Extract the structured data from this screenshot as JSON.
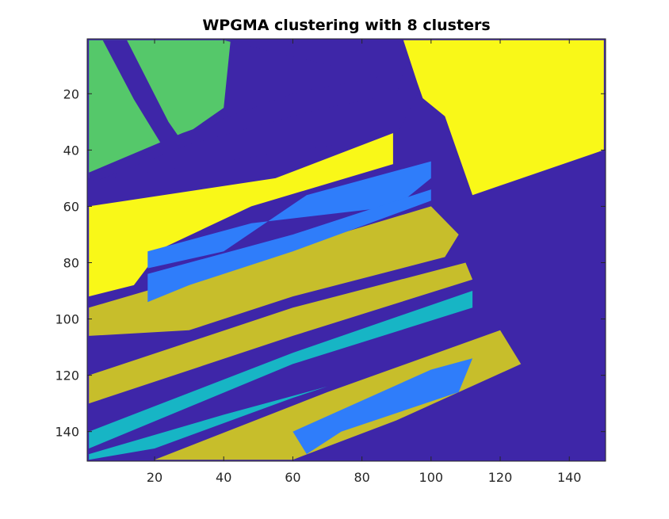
{
  "chart_data": {
    "type": "heatmap",
    "title": "WPGMA clustering with 8 clusters",
    "xlabel": "",
    "ylabel": "",
    "xlim": [
      0.5,
      150.5
    ],
    "ylim": [
      0.5,
      150.5
    ],
    "y_reversed": true,
    "grid": false,
    "x_ticks": [
      20,
      40,
      60,
      80,
      100,
      120,
      140
    ],
    "y_ticks": [
      20,
      40,
      60,
      80,
      100,
      120,
      140
    ],
    "x_tick_labels": [
      "20",
      "40",
      "60",
      "80",
      "100",
      "120",
      "140"
    ],
    "y_tick_labels": [
      "20",
      "40",
      "60",
      "80",
      "100",
      "120",
      "140"
    ],
    "grid_size": [
      150,
      150
    ],
    "cluster_colors": {
      "road": "#3e26a8",
      "blue": "#2f7dfa",
      "teal": "#17b5c5",
      "green": "#55c86a",
      "olive": "#c7be2b",
      "yellow": "#f9f818"
    },
    "regions": [
      {
        "cluster": "green",
        "polygon": [
          [
            1,
            1
          ],
          [
            42,
            1
          ],
          [
            40,
            25
          ],
          [
            26,
            37
          ],
          [
            10,
            46
          ],
          [
            1,
            50
          ]
        ]
      },
      {
        "cluster": "road",
        "polygon": [
          [
            5,
            1
          ],
          [
            12,
            1
          ],
          [
            24,
            30
          ],
          [
            28,
            37
          ],
          [
            22,
            38
          ],
          [
            14,
            22
          ]
        ]
      },
      {
        "cluster": "road",
        "polygon": [
          [
            40,
            1
          ],
          [
            95,
            1
          ],
          [
            90,
            20
          ],
          [
            66,
            26
          ],
          [
            30,
            38
          ],
          [
            1,
            52
          ],
          [
            1,
            48
          ],
          [
            28,
            34
          ],
          [
            60,
            20
          ],
          [
            85,
            14
          ]
        ]
      },
      {
        "cluster": "yellow",
        "polygon": [
          [
            92,
            1
          ],
          [
            150,
            1
          ],
          [
            150,
            40
          ],
          [
            112,
            57
          ],
          [
            100,
            30
          ],
          [
            96,
            16
          ]
        ]
      },
      {
        "cluster": "road",
        "polygon": [
          [
            1,
            51
          ],
          [
            90,
            35
          ],
          [
            96,
            20
          ],
          [
            104,
            28
          ],
          [
            112,
            56
          ],
          [
            150,
            40
          ],
          [
            150,
            150
          ],
          [
            106,
            150
          ],
          [
            1,
            150
          ]
        ]
      },
      {
        "cluster": "yellow",
        "polygon": [
          [
            1,
            60
          ],
          [
            55,
            50
          ],
          [
            89,
            34
          ],
          [
            89,
            45
          ],
          [
            48,
            60
          ],
          [
            22,
            75
          ],
          [
            14,
            88
          ],
          [
            1,
            92
          ]
        ]
      },
      {
        "cluster": "blue",
        "polygon": [
          [
            64,
            56
          ],
          [
            100,
            44
          ],
          [
            100,
            50
          ],
          [
            90,
            60
          ],
          [
            48,
            66
          ],
          [
            18,
            76
          ],
          [
            18,
            82
          ],
          [
            40,
            76
          ]
        ]
      },
      {
        "cluster": "olive",
        "polygon": [
          [
            1,
            96
          ],
          [
            40,
            82
          ],
          [
            100,
            60
          ],
          [
            108,
            70
          ],
          [
            104,
            78
          ],
          [
            60,
            92
          ],
          [
            30,
            104
          ],
          [
            1,
            106
          ]
        ]
      },
      {
        "cluster": "blue",
        "polygon": [
          [
            18,
            84
          ],
          [
            60,
            70
          ],
          [
            100,
            54
          ],
          [
            100,
            58
          ],
          [
            60,
            76
          ],
          [
            30,
            88
          ],
          [
            18,
            94
          ]
        ]
      },
      {
        "cluster": "olive",
        "polygon": [
          [
            1,
            120
          ],
          [
            60,
            96
          ],
          [
            110,
            80
          ],
          [
            112,
            86
          ],
          [
            60,
            106
          ],
          [
            1,
            130
          ]
        ]
      },
      {
        "cluster": "teal",
        "polygon": [
          [
            1,
            140
          ],
          [
            60,
            112
          ],
          [
            112,
            90
          ],
          [
            112,
            96
          ],
          [
            60,
            116
          ],
          [
            1,
            146
          ]
        ]
      },
      {
        "cluster": "olive",
        "polygon": [
          [
            20,
            150
          ],
          [
            70,
            126
          ],
          [
            120,
            104
          ],
          [
            126,
            116
          ],
          [
            90,
            136
          ],
          [
            60,
            150
          ]
        ]
      },
      {
        "cluster": "blue",
        "polygon": [
          [
            60,
            140
          ],
          [
            100,
            118
          ],
          [
            112,
            114
          ],
          [
            108,
            126
          ],
          [
            74,
            140
          ],
          [
            64,
            148
          ]
        ]
      },
      {
        "cluster": "teal",
        "polygon": [
          [
            1,
            148
          ],
          [
            40,
            134
          ],
          [
            70,
            124
          ],
          [
            60,
            128
          ],
          [
            20,
            146
          ],
          [
            1,
            150
          ]
        ]
      }
    ]
  }
}
